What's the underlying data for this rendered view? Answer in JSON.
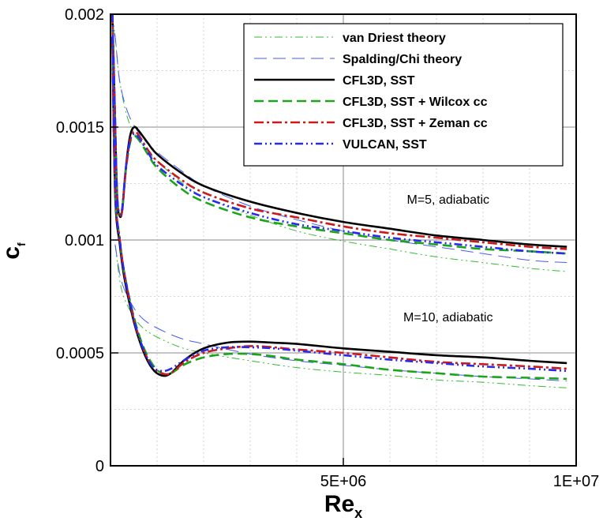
{
  "chart_data": {
    "type": "line",
    "xlabel": "Re",
    "xlabel_sub": "x",
    "ylabel": "c",
    "ylabel_sub": "f",
    "xlim": [
      0,
      10000000
    ],
    "ylim": [
      0,
      0.002
    ],
    "x_ticks": [
      {
        "value": 5000000,
        "label": "5E+06"
      },
      {
        "value": 10000000,
        "label": "1E+07"
      }
    ],
    "y_ticks": [
      {
        "value": 0,
        "label": "0"
      },
      {
        "value": 0.0005,
        "label": "0.0005"
      },
      {
        "value": 0.001,
        "label": "0.001"
      },
      {
        "value": 0.0015,
        "label": "0.0015"
      },
      {
        "value": 0.002,
        "label": "0.002"
      }
    ],
    "grid": true,
    "legend_position": "top-right",
    "annotations": [
      {
        "text": "M=5, adiabatic",
        "x": 7250000,
        "y": 0.00116
      },
      {
        "text": "M=10, adiabatic",
        "x": 7250000,
        "y": 0.00064
      }
    ],
    "series": [
      {
        "name": "van Driest theory",
        "color": "#33bb33",
        "dash": "dashdotdot",
        "groups": [
          {
            "label": "M=5",
            "x": [
              30000,
              100000,
              200000,
              400000,
              700000,
              1000000,
              1500000,
              2000000,
              3000000,
              4000000,
              5000000,
              6000000,
              7000000,
              8000000,
              9000000,
              9800000
            ],
            "y": [
              0.002,
              0.0019,
              0.0017,
              0.00152,
              0.00142,
              0.00135,
              0.00126,
              0.00119,
              0.00111,
              0.00104,
              0.000995,
              0.00096,
              0.000925,
              0.0009,
              0.000875,
              0.00086
            ]
          },
          {
            "label": "M=10",
            "x": [
              100000,
              200000,
              300000,
              500000,
              700000,
              1000000,
              1500000,
              2000000,
              3000000,
              4000000,
              5000000,
              6000000,
              7000000,
              8000000,
              9000000,
              9800000
            ],
            "y": [
              0.00098,
              0.00082,
              0.00074,
              0.00066,
              0.00061,
              0.00057,
              0.000525,
              0.0005,
              0.000465,
              0.000435,
              0.000415,
              0.0004,
              0.00038,
              0.00037,
              0.000355,
              0.000345
            ]
          }
        ]
      },
      {
        "name": "Spalding/Chi theory",
        "color": "#4a5af0",
        "dash": "longdash",
        "groups": [
          {
            "label": "M=5",
            "x": [
              20000,
              100000,
              200000,
              400000,
              700000,
              1000000,
              1500000,
              2000000,
              3000000,
              4000000,
              5000000,
              6000000,
              7000000,
              8000000,
              9000000,
              9800000
            ],
            "y": [
              0.002,
              0.0019,
              0.0017,
              0.00155,
              0.00145,
              0.00139,
              0.00131,
              0.00124,
              0.00115,
              0.00109,
              0.00104,
              0.001,
              0.00097,
              0.00094,
              0.00091,
              0.0009
            ]
          },
          {
            "label": "M=10",
            "x": [
              100000,
              200000,
              300000,
              500000,
              700000,
              1000000,
              1500000,
              2000000,
              3000000,
              4000000,
              5000000,
              6000000,
              7000000,
              8000000,
              9000000,
              9800000
            ],
            "y": [
              0.00098,
              0.00085,
              0.00078,
              0.0007,
              0.00065,
              0.00061,
              0.000565,
              0.00054,
              0.000495,
              0.000465,
              0.000445,
              0.000425,
              0.00041,
              0.000395,
              0.000385,
              0.000375
            ]
          }
        ]
      },
      {
        "name": "CFL3D, SST",
        "color": "#000000",
        "dash": "solid",
        "groups": [
          {
            "label": "M=5",
            "x": [
              40000,
              90000,
              140000,
              190000,
              250000,
              330000,
              420000,
              510000,
              620000,
              800000,
              1000000,
              1500000,
              2000000,
              3000000,
              4000000,
              5000000,
              6000000,
              7000000,
              8000000,
              9000000,
              9800000
            ],
            "y": [
              0.002,
              0.0016,
              0.0012,
              0.00111,
              0.00113,
              0.00132,
              0.00146,
              0.0015,
              0.00148,
              0.00143,
              0.00138,
              0.0013,
              0.00124,
              0.00117,
              0.00112,
              0.00108,
              0.00105,
              0.00102,
              0.001,
              0.00098,
              0.00097
            ]
          },
          {
            "label": "M=10",
            "x": [
              40000,
              100000,
              200000,
              300000,
              500000,
              700000,
              900000,
              1100000,
              1300000,
              1600000,
              2000000,
              2500000,
              3000000,
              3500000,
              4000000,
              5000000,
              6000000,
              7000000,
              8000000,
              9000000,
              9800000
            ],
            "y": [
              0.0019,
              0.0012,
              0.00098,
              0.00083,
              0.00064,
              0.00051,
              0.00043,
              0.0004,
              0.00041,
              0.00047,
              0.00052,
              0.000545,
              0.00055,
              0.000545,
              0.00054,
              0.00052,
              0.000505,
              0.00049,
              0.00048,
              0.000465,
              0.000455
            ]
          }
        ]
      },
      {
        "name": "CFL3D, SST + Wilcox cc",
        "color": "#1aa51a",
        "dash": "dashed",
        "groups": [
          {
            "label": "M=5",
            "x": [
              40000,
              90000,
              140000,
              190000,
              250000,
              330000,
              420000,
              510000,
              620000,
              800000,
              1000000,
              1500000,
              2000000,
              3000000,
              4000000,
              5000000,
              6000000,
              7000000,
              8000000,
              9000000,
              9800000
            ],
            "y": [
              0.002,
              0.0016,
              0.00121,
              0.00112,
              0.00113,
              0.00131,
              0.00143,
              0.00146,
              0.00144,
              0.00138,
              0.00132,
              0.00123,
              0.00117,
              0.0011,
              0.00106,
              0.00103,
              0.001,
              0.00098,
              0.00096,
              0.00095,
              0.00094
            ]
          },
          {
            "label": "M=10",
            "x": [
              40000,
              100000,
              200000,
              300000,
              500000,
              700000,
              900000,
              1100000,
              1300000,
              1600000,
              2000000,
              2500000,
              3000000,
              3500000,
              4000000,
              5000000,
              6000000,
              7000000,
              8000000,
              9000000,
              9800000
            ],
            "y": [
              0.0019,
              0.00122,
              0.001,
              0.00085,
              0.00066,
              0.00053,
              0.00045,
              0.00041,
              0.00041,
              0.00045,
              0.00048,
              0.000495,
              0.000495,
              0.000485,
              0.00047,
              0.00045,
              0.000425,
              0.00041,
              0.000395,
              0.00039,
              0.000385
            ]
          }
        ]
      },
      {
        "name": "CFL3D, SST + Zeman cc",
        "color": "#cc1a1a",
        "dash": "dashdot",
        "groups": [
          {
            "label": "M=5",
            "x": [
              40000,
              90000,
              140000,
              190000,
              250000,
              330000,
              420000,
              510000,
              620000,
              800000,
              1000000,
              1500000,
              2000000,
              3000000,
              4000000,
              5000000,
              6000000,
              7000000,
              8000000,
              9000000,
              9800000
            ],
            "y": [
              0.002,
              0.0016,
              0.00121,
              0.00112,
              0.00113,
              0.00131,
              0.00144,
              0.00148,
              0.00146,
              0.0014,
              0.00135,
              0.00127,
              0.00121,
              0.00114,
              0.0011,
              0.00106,
              0.00103,
              0.00101,
              0.00099,
              0.00097,
              0.00096
            ]
          },
          {
            "label": "M=10",
            "x": [
              40000,
              100000,
              200000,
              300000,
              500000,
              700000,
              900000,
              1100000,
              1300000,
              1600000,
              2000000,
              2500000,
              3000000,
              3500000,
              4000000,
              5000000,
              6000000,
              7000000,
              8000000,
              9000000,
              9800000
            ],
            "y": [
              0.0019,
              0.00122,
              0.001,
              0.00085,
              0.00065,
              0.00052,
              0.00044,
              0.00041,
              0.00041,
              0.00046,
              0.0005,
              0.00052,
              0.00053,
              0.000525,
              0.000515,
              0.0005,
              0.00048,
              0.00046,
              0.00045,
              0.00044,
              0.00043
            ]
          }
        ]
      },
      {
        "name": "VULCAN, SST",
        "color": "#2a2aee",
        "dash": "dashdotdot",
        "groups": [
          {
            "label": "M=5",
            "x": [
              40000,
              90000,
              140000,
              190000,
              250000,
              330000,
              420000,
              510000,
              620000,
              800000,
              1000000,
              1500000,
              2000000,
              3000000,
              4000000,
              5000000,
              6000000,
              7000000,
              8000000,
              9000000,
              9800000
            ],
            "y": [
              0.002,
              0.0016,
              0.00121,
              0.00112,
              0.00114,
              0.00132,
              0.00144,
              0.00147,
              0.00145,
              0.00139,
              0.00133,
              0.00125,
              0.00119,
              0.00112,
              0.00107,
              0.00104,
              0.00101,
              0.00099,
              0.00097,
              0.00095,
              0.00094
            ]
          },
          {
            "label": "M=10",
            "x": [
              40000,
              100000,
              200000,
              300000,
              500000,
              700000,
              900000,
              1100000,
              1300000,
              1600000,
              2000000,
              2500000,
              3000000,
              3500000,
              4000000,
              5000000,
              6000000,
              7000000,
              8000000,
              9000000,
              9800000
            ],
            "y": [
              0.0019,
              0.00122,
              0.001,
              0.00085,
              0.00065,
              0.00052,
              0.00044,
              0.00042,
              0.00043,
              0.00047,
              0.00051,
              0.000525,
              0.000525,
              0.00052,
              0.00051,
              0.00049,
              0.00047,
              0.000455,
              0.00044,
              0.00043,
              0.00042
            ]
          }
        ]
      }
    ]
  }
}
